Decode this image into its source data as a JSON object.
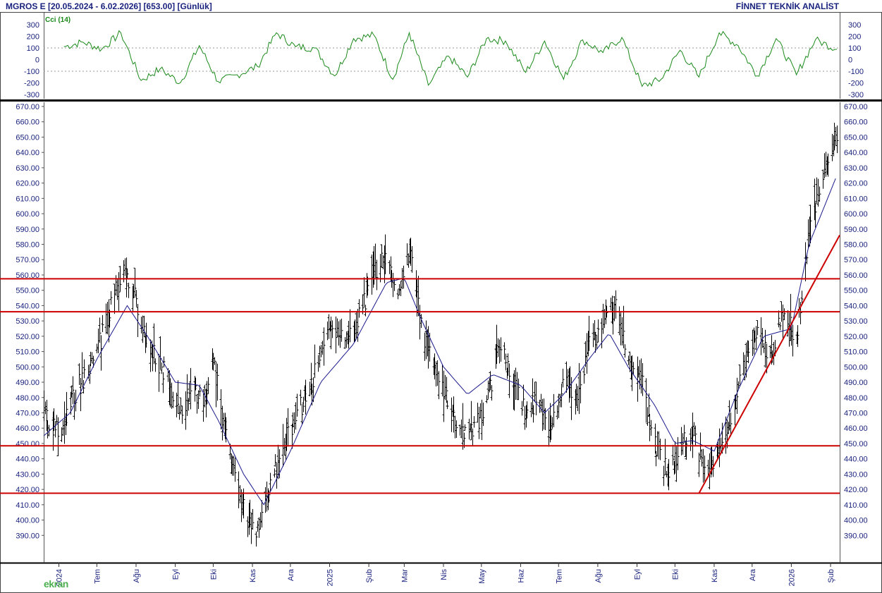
{
  "header": {
    "title": "MGROS E  [20.05.2024 - 6.02.2026]  [653.00]  [Günlük]",
    "brand": "FİNNET TEKNİK ANALİST"
  },
  "footer_logo": "ekran",
  "colors": {
    "price_bars": "#000000",
    "moving_average": "#1a1a8c",
    "horizontal_levels": "#cc0000",
    "trendline": "#cc0000",
    "cci_line": "#1b8a1b",
    "axis_text": "#1a237e"
  },
  "chart_data": [
    {
      "type": "line",
      "title": "Cci (14)",
      "ylim": [
        -300,
        300
      ],
      "yticks": [
        300,
        200,
        100,
        0,
        -100,
        -200,
        -300
      ],
      "reference_lines": [
        100,
        -100
      ],
      "series": [
        {
          "name": "Cci (14)",
          "x": [
            "2024-06-05",
            "2024-06-20",
            "2024-07-05",
            "2024-07-20",
            "2024-08-05",
            "2024-08-20",
            "2024-09-05",
            "2024-09-20",
            "2024-10-05",
            "2024-10-20",
            "2024-11-05",
            "2024-11-20",
            "2024-12-05",
            "2024-12-20",
            "2025-01-05",
            "2025-01-20",
            "2025-02-05",
            "2025-02-20",
            "2025-03-05",
            "2025-03-20",
            "2025-04-05",
            "2025-04-20",
            "2025-05-05",
            "2025-05-20",
            "2025-06-05",
            "2025-06-20",
            "2025-07-05",
            "2025-07-20",
            "2025-08-05",
            "2025-08-20",
            "2025-09-05",
            "2025-09-20",
            "2025-10-05",
            "2025-10-20",
            "2025-11-05",
            "2025-11-20",
            "2025-12-05",
            "2025-12-20",
            "2026-01-05",
            "2026-01-20",
            "2026-02-06"
          ],
          "values": [
            110,
            150,
            90,
            230,
            -180,
            -80,
            -200,
            120,
            -190,
            -130,
            -60,
            230,
            110,
            100,
            -140,
            180,
            210,
            -170,
            230,
            -220,
            30,
            -150,
            180,
            160,
            -110,
            160,
            -170,
            170,
            60,
            190,
            -230,
            -170,
            80,
            -150,
            230,
            120,
            -140,
            180,
            -130,
            170,
            90
          ]
        }
      ]
    },
    {
      "type": "bar",
      "subtype": "ohlc",
      "ylim": [
        380,
        670
      ],
      "yticks": [
        670,
        660,
        650,
        640,
        630,
        620,
        610,
        600,
        590,
        580,
        570,
        560,
        550,
        540,
        530,
        520,
        510,
        500,
        490,
        480,
        470,
        460,
        450,
        440,
        430,
        420,
        410,
        400,
        390
      ],
      "x_start": "2024-05-20",
      "x_end": "2026-02-06",
      "xticks": [
        {
          "label": "2024",
          "date": "2024-06-01"
        },
        {
          "label": "Tem",
          "date": "2024-07-01"
        },
        {
          "label": "Ağu",
          "date": "2024-08-01"
        },
        {
          "label": "Eyl",
          "date": "2024-09-01"
        },
        {
          "label": "Eki",
          "date": "2024-10-01"
        },
        {
          "label": "Kas",
          "date": "2024-11-01"
        },
        {
          "label": "Ara",
          "date": "2024-12-01"
        },
        {
          "label": "2025",
          "date": "2025-01-01"
        },
        {
          "label": "Şub",
          "date": "2025-02-01"
        },
        {
          "label": "Mar",
          "date": "2025-03-01"
        },
        {
          "label": "Nis",
          "date": "2025-04-01"
        },
        {
          "label": "May",
          "date": "2025-05-01"
        },
        {
          "label": "Haz",
          "date": "2025-06-01"
        },
        {
          "label": "Tem",
          "date": "2025-07-01"
        },
        {
          "label": "Ağu",
          "date": "2025-08-01"
        },
        {
          "label": "Eyl",
          "date": "2025-09-01"
        },
        {
          "label": "Eki",
          "date": "2025-10-01"
        },
        {
          "label": "Kas",
          "date": "2025-11-01"
        },
        {
          "label": "Ara",
          "date": "2025-12-01"
        },
        {
          "label": "2026",
          "date": "2026-01-01"
        },
        {
          "label": "Şub",
          "date": "2026-02-01"
        }
      ],
      "price_path": {
        "dates": [
          "2024-05-20",
          "2024-06-01",
          "2024-06-15",
          "2024-07-01",
          "2024-07-10",
          "2024-07-20",
          "2024-07-28",
          "2024-08-10",
          "2024-08-25",
          "2024-09-05",
          "2024-09-15",
          "2024-09-25",
          "2024-10-01",
          "2024-10-10",
          "2024-10-20",
          "2024-11-01",
          "2024-11-05",
          "2024-11-15",
          "2024-11-25",
          "2024-12-10",
          "2024-12-20",
          "2025-01-01",
          "2025-01-15",
          "2025-01-25",
          "2025-02-05",
          "2025-02-15",
          "2025-02-25",
          "2025-03-05",
          "2025-03-15",
          "2025-03-25",
          "2025-04-05",
          "2025-04-15",
          "2025-04-25",
          "2025-05-05",
          "2025-05-15",
          "2025-05-25",
          "2025-06-05",
          "2025-06-15",
          "2025-06-25",
          "2025-07-05",
          "2025-07-15",
          "2025-07-25",
          "2025-08-05",
          "2025-08-15",
          "2025-08-25",
          "2025-09-05",
          "2025-09-15",
          "2025-09-25",
          "2025-10-05",
          "2025-10-15",
          "2025-10-25",
          "2025-11-05",
          "2025-11-15",
          "2025-11-25",
          "2025-12-05",
          "2025-12-15",
          "2025-12-25",
          "2026-01-05",
          "2026-01-15",
          "2026-01-25",
          "2026-02-06"
        ],
        "closes": [
          470,
          455,
          485,
          510,
          535,
          560,
          555,
          515,
          495,
          470,
          485,
          470,
          505,
          460,
          420,
          395,
          392,
          420,
          450,
          475,
          495,
          525,
          515,
          535,
          560,
          575,
          545,
          575,
          525,
          495,
          475,
          455,
          460,
          475,
          515,
          495,
          470,
          480,
          460,
          495,
          480,
          515,
          528,
          540,
          505,
          490,
          450,
          430,
          445,
          462,
          425,
          450,
          470,
          500,
          525,
          505,
          535,
          520,
          590,
          625,
          653
        ]
      },
      "moving_average": {
        "name": "MA",
        "dates": [
          "2024-05-20",
          "2024-06-10",
          "2024-07-01",
          "2024-07-25",
          "2024-08-10",
          "2024-09-01",
          "2024-09-20",
          "2024-10-05",
          "2024-10-25",
          "2024-11-10",
          "2024-12-01",
          "2024-12-25",
          "2025-01-20",
          "2025-02-15",
          "2025-03-01",
          "2025-03-15",
          "2025-04-01",
          "2025-04-20",
          "2025-05-10",
          "2025-06-01",
          "2025-06-20",
          "2025-07-05",
          "2025-07-25",
          "2025-08-10",
          "2025-08-25",
          "2025-09-15",
          "2025-10-01",
          "2025-10-15",
          "2025-11-01",
          "2025-11-20",
          "2025-12-10",
          "2026-01-01",
          "2026-01-15",
          "2026-02-06"
        ],
        "values": [
          455,
          470,
          505,
          540,
          520,
          490,
          488,
          465,
          430,
          410,
          445,
          490,
          515,
          555,
          558,
          530,
          500,
          482,
          495,
          488,
          470,
          482,
          505,
          522,
          500,
          475,
          450,
          452,
          445,
          485,
          520,
          525,
          580,
          625
        ]
      },
      "horizontal_levels": [
        557.5,
        536,
        448.5,
        417.5
      ],
      "trendline": {
        "from": {
          "date": "2025-10-20",
          "value": 417.5
        },
        "to": {
          "date": "2026-02-06",
          "value": 586
        }
      }
    }
  ]
}
